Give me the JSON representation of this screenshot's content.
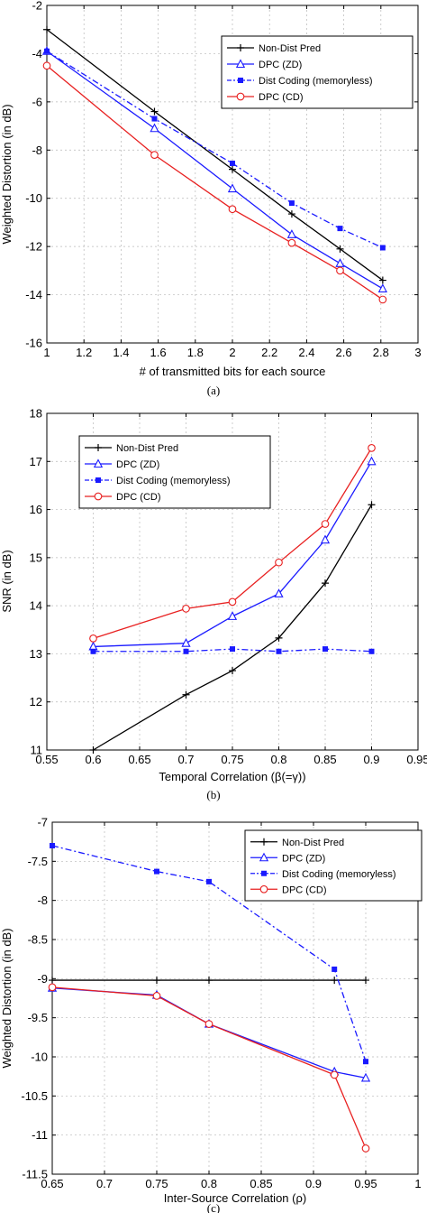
{
  "chart_data": [
    {
      "type": "line",
      "caption": "(a)",
      "xlabel": "# of transmitted bits for each source",
      "ylabel": "Weighted Distortion (in dB)",
      "xlim": [
        1,
        3
      ],
      "ylim": [
        -16,
        -2
      ],
      "xticks": [
        "1",
        "1.2",
        "1.4",
        "1.6",
        "1.8",
        "2",
        "2.2",
        "2.4",
        "2.6",
        "2.8",
        "3"
      ],
      "yticks": [
        "-2",
        "-4",
        "-6",
        "-8",
        "-10",
        "-12",
        "-14",
        "-16"
      ],
      "grid": true,
      "legend_position": "top-right",
      "series": [
        {
          "name": "Non-Dist Pred",
          "color": "#000000",
          "marker": "plus",
          "dash": "solid",
          "x": [
            1,
            1.58,
            2,
            2.32,
            2.58,
            2.81
          ],
          "y": [
            -3.0,
            -6.4,
            -8.8,
            -10.65,
            -12.1,
            -13.4
          ]
        },
        {
          "name": "DPC (ZD)",
          "color": "#1a1aff",
          "marker": "triangle",
          "dash": "solid",
          "x": [
            1,
            1.58,
            2,
            2.32,
            2.58,
            2.81
          ],
          "y": [
            -3.9,
            -7.1,
            -9.6,
            -11.5,
            -12.7,
            -13.75
          ]
        },
        {
          "name": "Dist Coding (memoryless)",
          "color": "#1a1aff",
          "marker": "square",
          "dash": "dashdot",
          "x": [
            1,
            1.58,
            2,
            2.32,
            2.58,
            2.81
          ],
          "y": [
            -3.9,
            -6.7,
            -8.55,
            -10.2,
            -11.25,
            -12.05
          ]
        },
        {
          "name": "DPC (CD)",
          "color": "#e82020",
          "marker": "circle",
          "dash": "solid",
          "x": [
            1,
            1.58,
            2,
            2.32,
            2.58,
            2.81
          ],
          "y": [
            -4.5,
            -8.2,
            -10.45,
            -11.85,
            -13.0,
            -14.2
          ]
        }
      ]
    },
    {
      "type": "line",
      "caption": "(b)",
      "xlabel": "Temporal Correlation (β(=γ))",
      "ylabel": "SNR (in dB)",
      "xlim": [
        0.55,
        0.95
      ],
      "ylim": [
        11,
        18
      ],
      "xticks": [
        "0.55",
        "0.6",
        "0.65",
        "0.7",
        "0.75",
        "0.8",
        "0.85",
        "0.9",
        "0.95"
      ],
      "yticks": [
        "18",
        "17",
        "16",
        "15",
        "14",
        "13",
        "12",
        "11"
      ],
      "grid": true,
      "legend_position": "top-left",
      "series": [
        {
          "name": "Non-Dist Pred",
          "color": "#000000",
          "marker": "plus",
          "dash": "solid",
          "x": [
            0.6,
            0.7,
            0.75,
            0.8,
            0.85,
            0.9
          ],
          "y": [
            11.0,
            12.15,
            12.65,
            13.33,
            14.47,
            16.1
          ]
        },
        {
          "name": "DPC (ZD)",
          "color": "#1a1aff",
          "marker": "triangle",
          "dash": "solid",
          "x": [
            0.6,
            0.7,
            0.75,
            0.8,
            0.85,
            0.9
          ],
          "y": [
            13.15,
            13.22,
            13.78,
            14.25,
            15.37,
            17.0
          ]
        },
        {
          "name": "Dist Coding (memoryless)",
          "color": "#1a1aff",
          "marker": "square",
          "dash": "dashdot",
          "x": [
            0.6,
            0.7,
            0.75,
            0.8,
            0.85,
            0.9
          ],
          "y": [
            13.05,
            13.05,
            13.1,
            13.05,
            13.1,
            13.05
          ]
        },
        {
          "name": "DPC (CD)",
          "color": "#e82020",
          "marker": "circle",
          "dash": "solid",
          "x": [
            0.6,
            0.7,
            0.75,
            0.8,
            0.85,
            0.9
          ],
          "y": [
            13.32,
            13.94,
            14.08,
            14.9,
            15.7,
            17.28
          ]
        }
      ]
    },
    {
      "type": "line",
      "caption": "(c)",
      "xlabel": "Inter-Source Correlation (ρ)",
      "ylabel": "Weighted Distortion (in dB)",
      "xlim": [
        0.65,
        1
      ],
      "ylim": [
        -11.5,
        -7
      ],
      "xticks": [
        "0.65",
        "0.7",
        "0.75",
        "0.8",
        "0.85",
        "0.9",
        "0.95",
        "1"
      ],
      "yticks": [
        "-7",
        "-7.5",
        "-8",
        "-8.5",
        "-9",
        "-9.5",
        "-10",
        "-10.5",
        "-11",
        "-11.5"
      ],
      "grid": true,
      "legend_position": "top-right",
      "series": [
        {
          "name": "Non-Dist Pred",
          "color": "#000000",
          "marker": "plus",
          "dash": "solid",
          "x": [
            0.65,
            0.75,
            0.8,
            0.92,
            0.95
          ],
          "y": [
            -9.02,
            -9.02,
            -9.02,
            -9.02,
            -9.02
          ]
        },
        {
          "name": "DPC (ZD)",
          "color": "#1a1aff",
          "marker": "triangle",
          "dash": "solid",
          "x": [
            0.65,
            0.75,
            0.8,
            0.92,
            0.95
          ],
          "y": [
            -9.12,
            -9.21,
            -9.58,
            -10.19,
            -10.27
          ]
        },
        {
          "name": "Dist Coding (memoryless)",
          "color": "#1a1aff",
          "marker": "square",
          "dash": "dashdot",
          "x": [
            0.65,
            0.75,
            0.8,
            0.92,
            0.95
          ],
          "y": [
            -7.3,
            -7.63,
            -7.76,
            -8.88,
            -10.06
          ]
        },
        {
          "name": "DPC (CD)",
          "color": "#e82020",
          "marker": "circle",
          "dash": "solid",
          "x": [
            0.65,
            0.75,
            0.8,
            0.92,
            0.95
          ],
          "y": [
            -9.11,
            -9.22,
            -9.58,
            -10.23,
            -11.17
          ]
        }
      ]
    }
  ]
}
